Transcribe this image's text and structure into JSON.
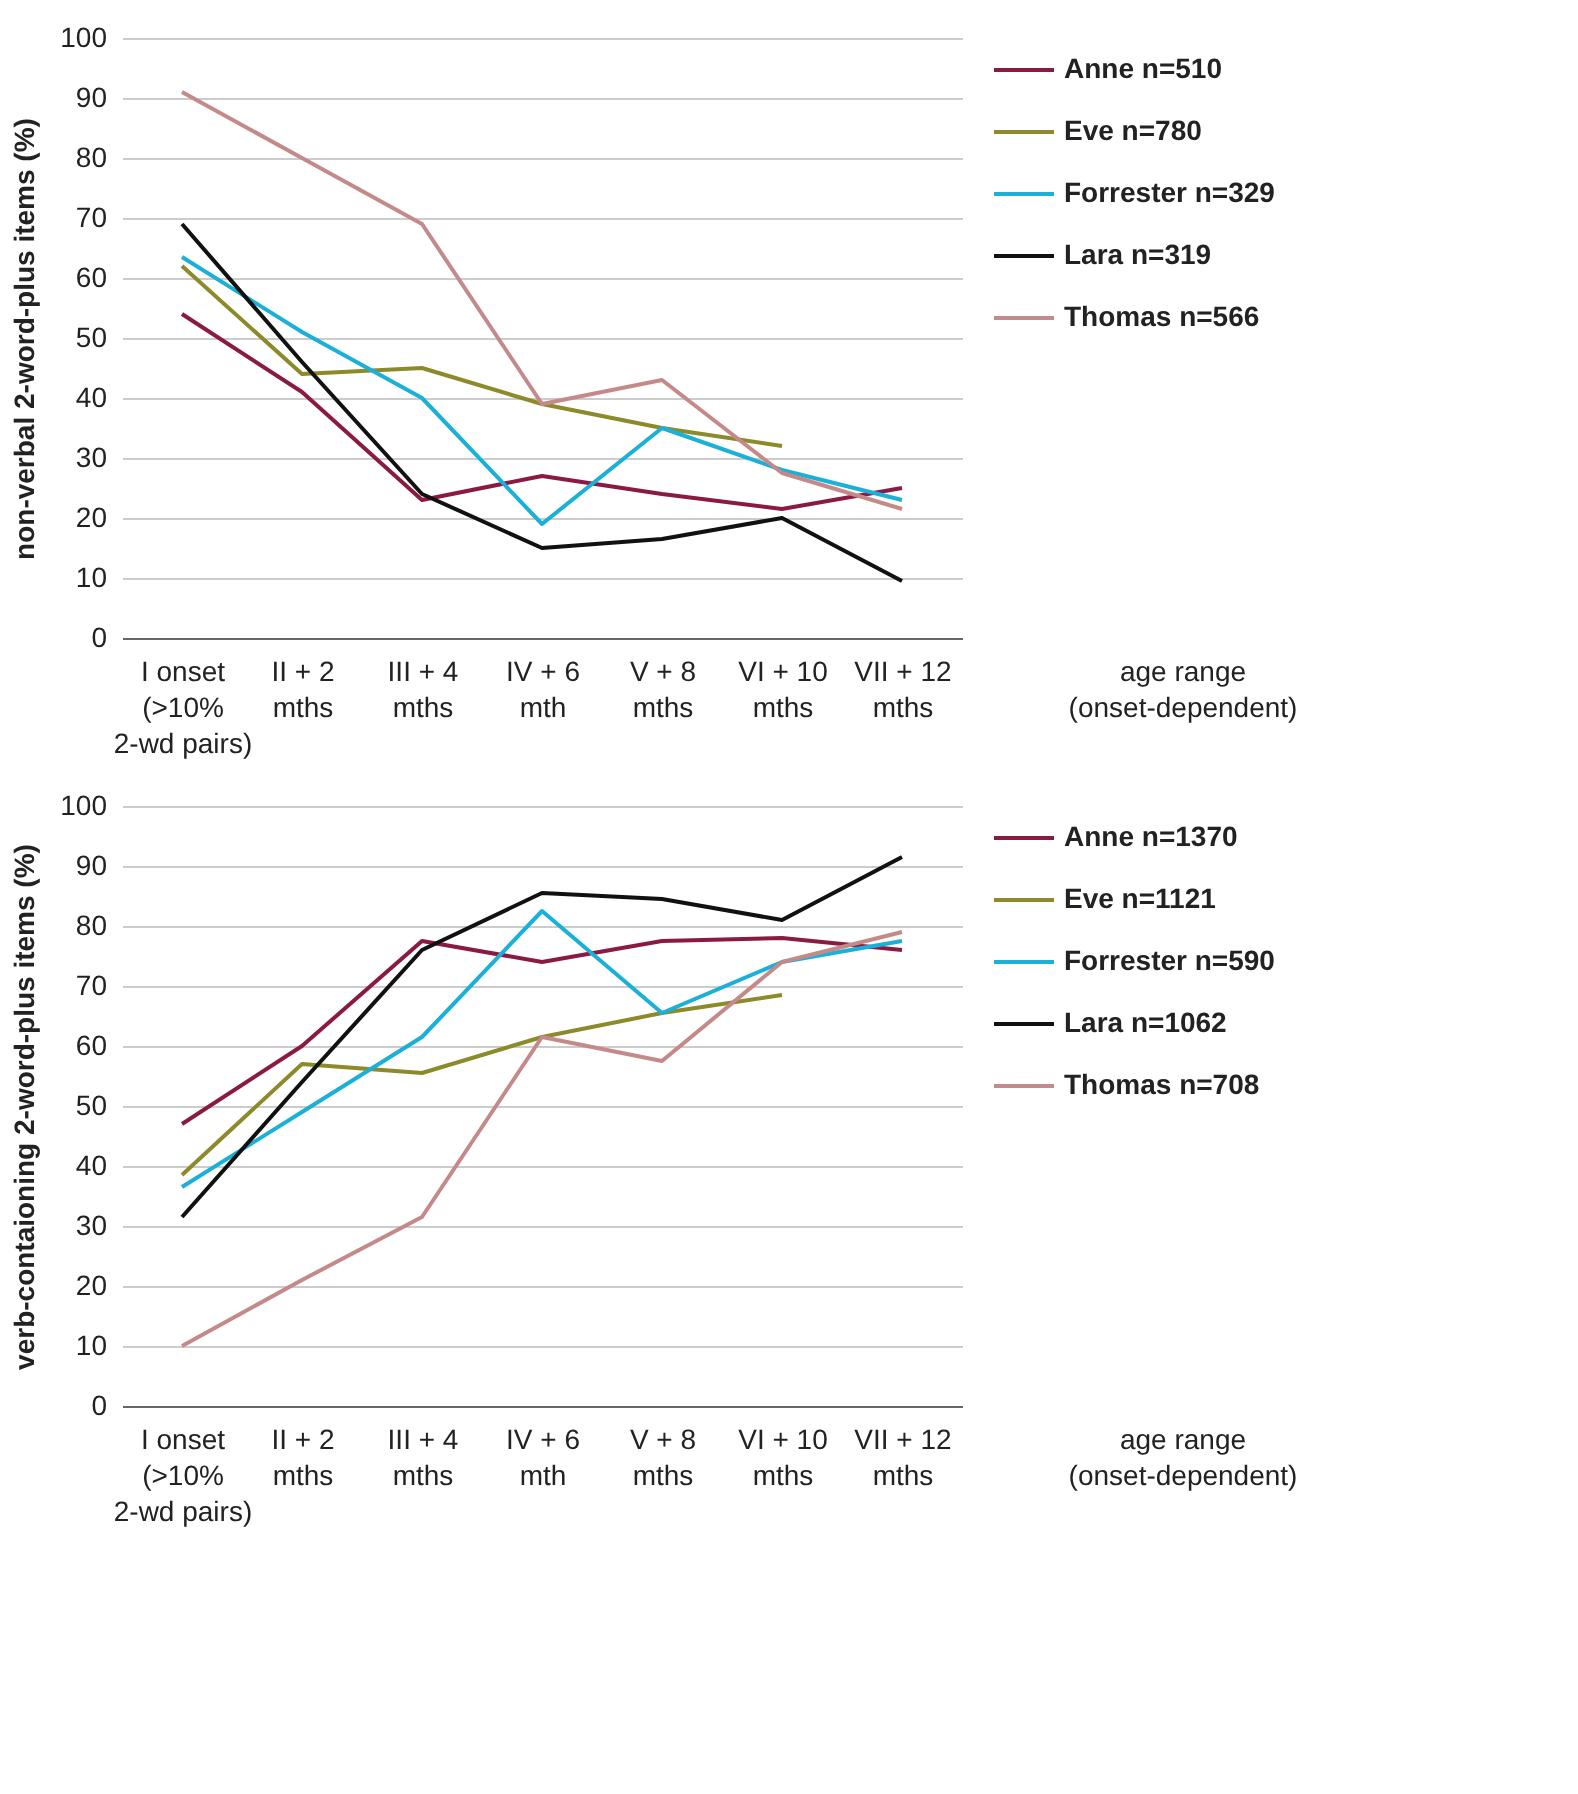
{
  "chart_data": [
    {
      "type": "line",
      "ylabel": "non-verbal 2-word-plus items (%)",
      "xlabel": "age range\n(onset-dependent)",
      "categories": [
        "I onset\n(>10%\n2-wd pairs)",
        "II + 2\nmths",
        "III + 4\nmths",
        "IV + 6\nmth",
        "V + 8\nmths",
        "VI + 10\nmths",
        "VII + 12\nmths"
      ],
      "series": [
        {
          "name": "Anne n=510",
          "color": "#8b1a42",
          "values": [
            54,
            41,
            23,
            27,
            24,
            21.5,
            25
          ]
        },
        {
          "name": "Eve n=780",
          "color": "#8c8a2a",
          "values": [
            62,
            44,
            45,
            39,
            35,
            32,
            null
          ]
        },
        {
          "name": "Forrester n=329",
          "color": "#1ab0d8",
          "values": [
            63.5,
            51,
            40,
            19,
            35,
            28,
            23
          ]
        },
        {
          "name": "Lara n=319",
          "color": "#111111",
          "values": [
            69,
            46,
            24,
            15,
            16.5,
            20,
            9.5
          ]
        },
        {
          "name": "Thomas n=566",
          "color": "#c48a8a",
          "values": [
            91,
            80,
            69,
            39,
            43,
            27.5,
            21.5
          ]
        }
      ],
      "ylim": [
        0,
        100
      ],
      "yticks": [
        0,
        10,
        20,
        30,
        40,
        50,
        60,
        70,
        80,
        90,
        100
      ],
      "grid": "y",
      "legend": "top right"
    },
    {
      "type": "line",
      "ylabel": "verb-contaioning 2-word-plus items (%)",
      "xlabel": "age range\n(onset-dependent)",
      "categories": [
        "I onset\n(>10%\n2-wd pairs)",
        "II + 2\nmths",
        "III + 4\nmths",
        "IV + 6\nmth",
        "V + 8\nmths",
        "VI + 10\nmths",
        "VII + 12\nmths"
      ],
      "series": [
        {
          "name": "Anne n=1370",
          "color": "#8b1a42",
          "values": [
            47,
            60,
            77.5,
            74,
            77.5,
            78,
            76
          ]
        },
        {
          "name": "Eve n=1121",
          "color": "#8c8a2a",
          "values": [
            38.5,
            57,
            55.5,
            61.5,
            65.5,
            68.5,
            null
          ]
        },
        {
          "name": "Forrester n=590",
          "color": "#1ab0d8",
          "values": [
            36.5,
            49,
            61.5,
            82.5,
            65.5,
            74,
            77.5
          ]
        },
        {
          "name": "Lara n=1062",
          "color": "#111111",
          "values": [
            31.5,
            54,
            76,
            85.5,
            84.5,
            81,
            91.5
          ]
        },
        {
          "name": "Thomas n=708",
          "color": "#c48a8a",
          "values": [
            10,
            21,
            31.5,
            61.5,
            57.5,
            74,
            79
          ]
        }
      ],
      "ylim": [
        0,
        100
      ],
      "yticks": [
        0,
        10,
        20,
        30,
        40,
        50,
        60,
        70,
        80,
        90,
        100
      ],
      "grid": "y",
      "legend": "top right"
    }
  ]
}
